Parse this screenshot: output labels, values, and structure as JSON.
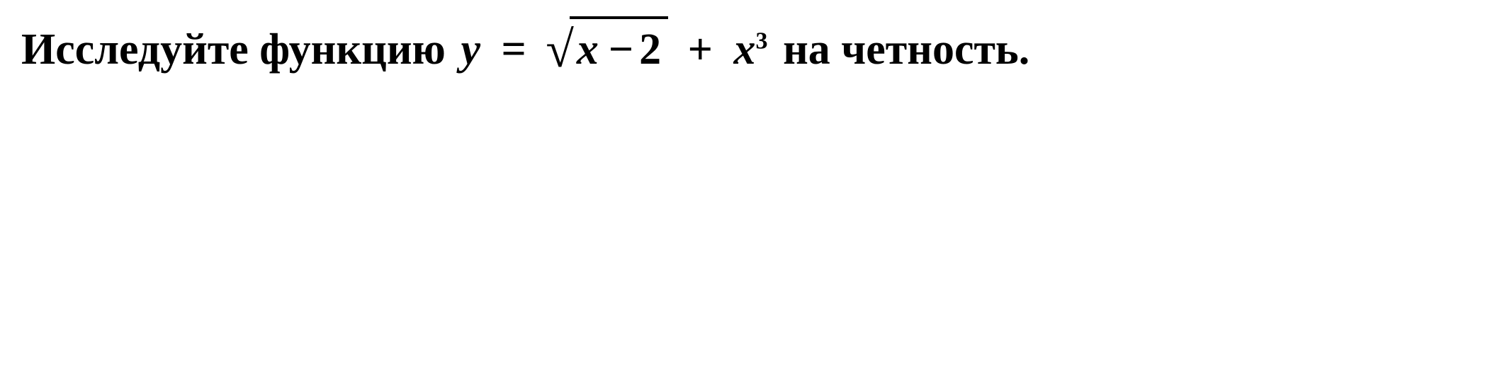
{
  "problem": {
    "text_prefix": "Исследуйте функцию",
    "var_y": "y",
    "equals": "=",
    "radicand_var": "x",
    "radicand_minus": "−",
    "radicand_const": "2",
    "plus": "+",
    "term2_var": "x",
    "term2_exp": "3",
    "text_suffix": "на четность.",
    "colors": {
      "text": "#000000",
      "background": "#ffffff"
    },
    "fontsize_main": 62,
    "fontsize_sqrt": 72,
    "fontweight": "bold",
    "sqrt_bar_thickness": 4
  }
}
